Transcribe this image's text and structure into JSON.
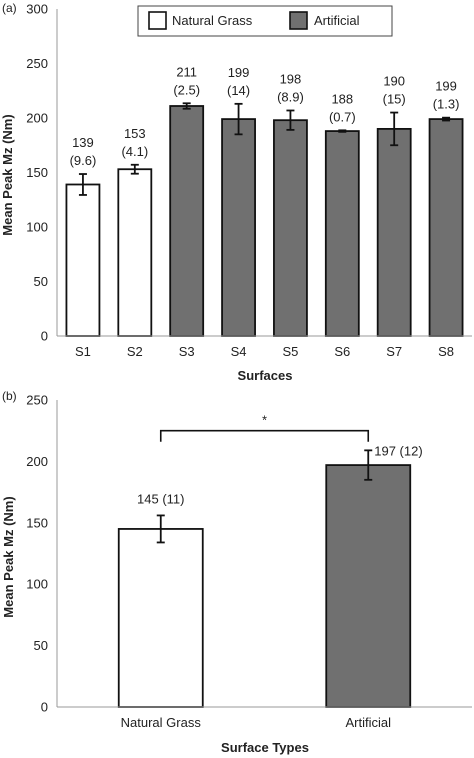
{
  "chart_data": [
    {
      "type": "bar",
      "panel_label": "(a)",
      "categories": [
        "S1",
        "S2",
        "S3",
        "S4",
        "S5",
        "S6",
        "S7",
        "S8"
      ],
      "series": [
        {
          "name": "",
          "values": [
            139,
            153,
            211,
            199,
            198,
            188,
            190,
            199
          ],
          "errors": [
            9.6,
            4.1,
            2.5,
            14,
            8.9,
            0.7,
            15,
            1.3
          ],
          "groups": [
            "Natural Grass",
            "Natural Grass",
            "Artificial",
            "Artificial",
            "Artificial",
            "Artificial",
            "Artificial",
            "Artificial"
          ]
        }
      ],
      "data_labels_top": [
        "139",
        "153",
        "211",
        "199",
        "198",
        "188",
        "190",
        "199"
      ],
      "data_labels_bottom": [
        "(9.6)",
        "(4.1)",
        "(2.5)",
        "(14)",
        "(8.9)",
        "(0.7)",
        "(15)",
        "(1.3)"
      ],
      "xlabel": "Surfaces",
      "ylabel": "Mean Peak Mz (Nm)",
      "ylim": [
        0,
        300
      ],
      "yticks": [
        "0",
        "50",
        "100",
        "150",
        "200",
        "250",
        "300"
      ],
      "legend": {
        "placement": "top-center",
        "entries": [
          {
            "label": "Natural Grass",
            "color": "#ffffff"
          },
          {
            "label": "Artificial",
            "color": "#707070"
          }
        ]
      },
      "grid": false
    },
    {
      "type": "bar",
      "panel_label": "(b)",
      "categories": [
        "Natural Grass",
        "Artificial"
      ],
      "series": [
        {
          "name": "",
          "values": [
            145,
            197
          ],
          "errors": [
            11,
            12
          ],
          "groups": [
            "Natural Grass",
            "Artificial"
          ]
        }
      ],
      "data_labels": [
        "145 (11)",
        "197 (12)"
      ],
      "significance_marker": "*",
      "xlabel": "Surface Types",
      "ylabel": "Mean Peak Mz (Nm)",
      "ylim": [
        0,
        250
      ],
      "yticks": [
        "0",
        "50",
        "100",
        "150",
        "200",
        "250"
      ],
      "grid": false
    }
  ],
  "colors": {
    "natural": "#ffffff",
    "artificial": "#707070",
    "stroke": "#111111",
    "axis": "#999999"
  }
}
